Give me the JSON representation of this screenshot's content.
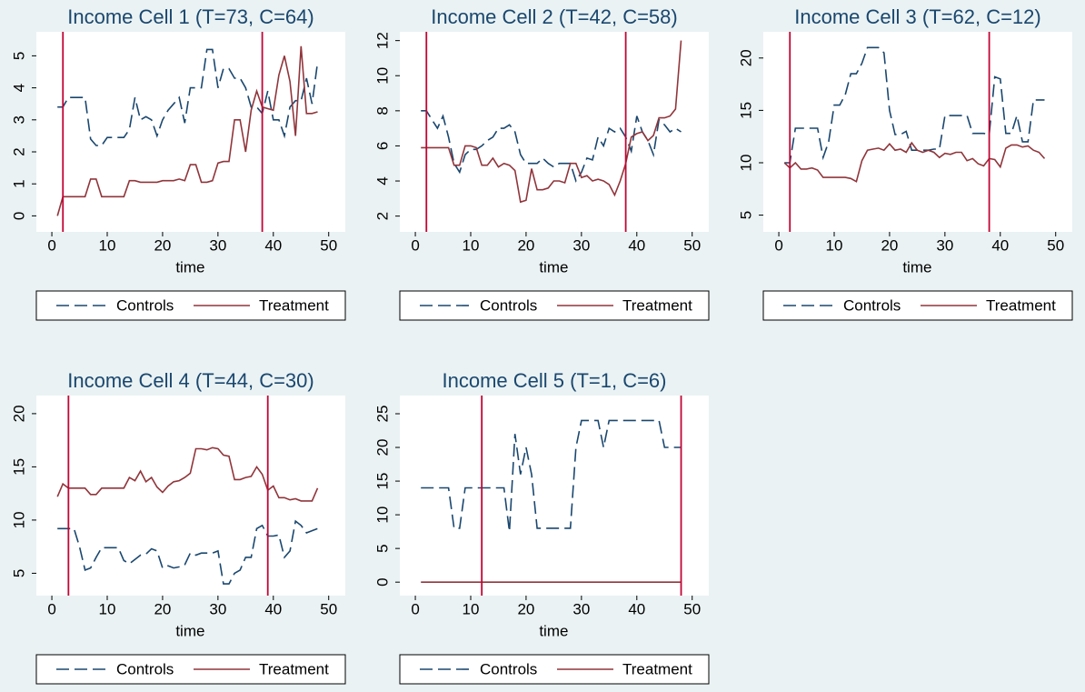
{
  "chart_data": [
    {
      "type": "line",
      "title": "Income Cell 1 (T=73, C=64)",
      "xlabel": "time",
      "x": [
        1,
        2,
        3,
        4,
        5,
        6,
        7,
        8,
        9,
        10,
        11,
        12,
        13,
        14,
        15,
        16,
        17,
        18,
        19,
        20,
        21,
        22,
        23,
        24,
        25,
        26,
        27,
        28,
        29,
        30,
        31,
        32,
        33,
        34,
        35,
        36,
        37,
        38,
        39,
        40,
        41,
        42,
        43,
        44,
        45,
        46,
        47,
        48
      ],
      "series": [
        {
          "name": "Controls",
          "color": "#1a476f",
          "style": "dashed",
          "values": [
            3.4,
            3.4,
            3.7,
            3.7,
            3.7,
            3.7,
            2.4,
            2.2,
            2.2,
            2.45,
            2.45,
            2.45,
            2.45,
            2.7,
            3.7,
            3.0,
            3.1,
            3.0,
            2.5,
            3.0,
            3.3,
            3.5,
            3.7,
            2.9,
            4.0,
            4.0,
            4.0,
            5.2,
            5.2,
            4.0,
            4.6,
            4.6,
            4.3,
            4.3,
            4.0,
            3.4,
            3.4,
            3.2,
            3.9,
            3.0,
            3.0,
            2.5,
            3.4,
            3.6,
            3.6,
            4.3,
            3.5,
            4.8
          ]
        },
        {
          "name": "Treatment",
          "color": "#90353b",
          "style": "solid",
          "values": [
            0,
            0.6,
            0.6,
            0.6,
            0.6,
            0.6,
            1.15,
            1.15,
            0.6,
            0.6,
            0.6,
            0.6,
            0.6,
            1.1,
            1.1,
            1.05,
            1.05,
            1.05,
            1.05,
            1.1,
            1.1,
            1.1,
            1.15,
            1.1,
            1.6,
            1.6,
            1.05,
            1.05,
            1.1,
            1.65,
            1.7,
            1.7,
            3.0,
            3.0,
            2.0,
            3.3,
            3.9,
            3.4,
            3.35,
            3.3,
            4.4,
            5.0,
            4.2,
            2.5,
            5.3,
            3.2,
            3.2,
            3.25
          ]
        }
      ],
      "vlines": [
        2,
        38
      ],
      "vline_color": "#c10534",
      "xlim": [
        -2.8,
        53
      ],
      "xticks": [
        0,
        10,
        20,
        30,
        40,
        50
      ],
      "ylim": [
        -0.5,
        5.75
      ],
      "yticks": [
        0,
        1,
        2,
        3,
        4,
        5
      ]
    },
    {
      "type": "line",
      "title": "Income Cell 2 (T=42, C=58)",
      "xlabel": "time",
      "x": [
        1,
        2,
        3,
        4,
        5,
        6,
        7,
        8,
        9,
        10,
        11,
        12,
        13,
        14,
        15,
        16,
        17,
        18,
        19,
        20,
        21,
        22,
        23,
        24,
        25,
        26,
        27,
        28,
        29,
        30,
        31,
        32,
        33,
        34,
        35,
        36,
        37,
        38,
        39,
        40,
        41,
        42,
        43,
        44,
        45,
        46,
        47,
        48
      ],
      "series": [
        {
          "name": "Controls",
          "color": "#1a476f",
          "style": "dashed",
          "values": [
            8,
            8,
            7.5,
            7,
            7.7,
            6.5,
            5,
            4.5,
            5.5,
            5.8,
            5.8,
            6,
            6.3,
            6.5,
            7,
            7,
            7.2,
            6.8,
            5.5,
            5,
            5,
            5,
            5.3,
            5,
            4.8,
            5,
            5,
            5,
            4,
            4.5,
            5.3,
            5.2,
            6.5,
            6,
            7,
            6.8,
            7,
            6.5,
            5.7,
            7.7,
            6.8,
            6.3,
            5.5,
            7.5,
            7.2,
            6.8,
            7,
            6.8
          ]
        },
        {
          "name": "Treatment",
          "color": "#90353b",
          "style": "solid",
          "values": [
            5.9,
            5.9,
            5.9,
            5.9,
            5.9,
            5.9,
            4.9,
            4.9,
            6,
            6,
            5.9,
            4.9,
            4.9,
            5.3,
            4.8,
            5,
            4.9,
            4.6,
            2.8,
            2.9,
            4.7,
            3.5,
            3.5,
            3.6,
            4,
            4,
            3.9,
            5,
            5,
            4.2,
            4.3,
            4,
            4.1,
            4,
            3.8,
            3.2,
            4,
            5,
            6.5,
            6.7,
            6.8,
            6.3,
            6.6,
            7.6,
            7.6,
            7.7,
            8.1,
            12
          ]
        }
      ],
      "vlines": [
        2,
        38
      ],
      "vline_color": "#c10534",
      "xlim": [
        -2.8,
        53
      ],
      "xticks": [
        0,
        10,
        20,
        30,
        40,
        50
      ],
      "ylim": [
        1.1,
        12.5
      ],
      "yticks": [
        2,
        4,
        6,
        8,
        10,
        12
      ]
    },
    {
      "type": "line",
      "title": "Income Cell 3 (T=62, C=12)",
      "xlabel": "time",
      "x": [
        1,
        2,
        3,
        4,
        5,
        6,
        7,
        8,
        9,
        10,
        11,
        12,
        13,
        14,
        15,
        16,
        17,
        18,
        19,
        20,
        21,
        22,
        23,
        24,
        25,
        26,
        27,
        28,
        29,
        30,
        31,
        32,
        33,
        34,
        35,
        36,
        37,
        38,
        39,
        40,
        41,
        42,
        43,
        44,
        45,
        46,
        47,
        48
      ],
      "series": [
        {
          "name": "Controls",
          "color": "#1a476f",
          "style": "dashed",
          "values": [
            10,
            10,
            13.3,
            13.3,
            13.3,
            13.3,
            13.3,
            10.5,
            12,
            15.5,
            15.5,
            16.5,
            18.5,
            18.5,
            19.5,
            21,
            21,
            21,
            20.5,
            15,
            12.7,
            12.7,
            13,
            11.2,
            11.2,
            11.2,
            11.2,
            11.3,
            11.3,
            14.5,
            14.5,
            14.5,
            14.5,
            14.5,
            12.8,
            12.8,
            12.8,
            12.7,
            18.2,
            18,
            12.8,
            12.8,
            14.5,
            12,
            12,
            16,
            16,
            16
          ]
        },
        {
          "name": "Treatment",
          "color": "#90353b",
          "style": "solid",
          "values": [
            10,
            9.5,
            10,
            9.4,
            9.4,
            9.5,
            9.3,
            8.6,
            8.6,
            8.6,
            8.6,
            8.6,
            8.5,
            8.2,
            10.2,
            11.2,
            11.3,
            11.4,
            11.2,
            11.8,
            11.2,
            11.3,
            11,
            11.9,
            11.2,
            11,
            11.2,
            11,
            10.5,
            10.9,
            10.8,
            11,
            11,
            10.2,
            10.4,
            9.9,
            9.7,
            10.4,
            10.3,
            9.6,
            11.4,
            11.7,
            11.7,
            11.5,
            11.6,
            11.2,
            11,
            10.4
          ]
        }
      ],
      "vlines": [
        2,
        38
      ],
      "vline_color": "#c10534",
      "xlim": [
        -2.8,
        53
      ],
      "xticks": [
        0,
        10,
        20,
        30,
        40,
        50
      ],
      "ylim": [
        3.4,
        22.5
      ],
      "yticks": [
        5,
        10,
        15,
        20
      ]
    },
    {
      "type": "line",
      "title": "Income Cell 4 (T=44, C=30)",
      "xlabel": "time",
      "x": [
        1,
        2,
        3,
        4,
        5,
        6,
        7,
        8,
        9,
        10,
        11,
        12,
        13,
        14,
        15,
        16,
        17,
        18,
        19,
        20,
        21,
        22,
        23,
        24,
        25,
        26,
        27,
        28,
        29,
        30,
        31,
        32,
        33,
        34,
        35,
        36,
        37,
        38,
        39,
        40,
        41,
        42,
        43,
        44,
        45,
        46,
        47,
        48
      ],
      "series": [
        {
          "name": "Controls",
          "color": "#1a476f",
          "style": "dashed",
          "values": [
            9.2,
            9.2,
            9.2,
            9.2,
            7.5,
            5.3,
            5.5,
            6.5,
            7.4,
            7.4,
            7.4,
            7.4,
            6.2,
            5.9,
            6.3,
            6.7,
            6.8,
            7.3,
            7.1,
            5.5,
            5.7,
            5.5,
            5.6,
            5.8,
            6.9,
            6.7,
            6.9,
            6.9,
            6.9,
            7.1,
            4,
            4,
            5,
            5.3,
            6.5,
            6.5,
            9.2,
            9.5,
            8.5,
            8.5,
            8.6,
            6.5,
            7.1,
            9.9,
            9.5,
            8.8,
            9,
            9.2
          ]
        },
        {
          "name": "Treatment",
          "color": "#90353b",
          "style": "solid",
          "values": [
            12.2,
            13.4,
            13,
            13,
            13,
            13,
            12.4,
            12.4,
            13,
            13,
            13,
            13,
            13,
            14,
            13.7,
            14.6,
            13.6,
            14,
            13.1,
            12.6,
            13.2,
            13.6,
            13.7,
            14,
            14.4,
            16.7,
            16.7,
            16.6,
            16.8,
            16.7,
            16.1,
            16,
            13.8,
            13.8,
            14,
            14.1,
            15,
            14.3,
            12.8,
            13.2,
            12.1,
            12.1,
            11.9,
            12,
            11.8,
            11.8,
            11.8,
            13
          ]
        }
      ],
      "vlines": [
        3,
        39
      ],
      "vline_color": "#c10534",
      "xlim": [
        -2.8,
        53
      ],
      "xticks": [
        0,
        10,
        20,
        30,
        40,
        50
      ],
      "ylim": [
        2.9,
        21.7
      ],
      "yticks": [
        5,
        10,
        15,
        20
      ]
    },
    {
      "type": "line",
      "title": "Income Cell 5 (T=1, C=6)",
      "xlabel": "time",
      "x": [
        1,
        2,
        3,
        4,
        5,
        6,
        7,
        8,
        9,
        10,
        11,
        12,
        13,
        14,
        15,
        16,
        17,
        18,
        19,
        20,
        21,
        22,
        23,
        24,
        25,
        26,
        27,
        28,
        29,
        30,
        31,
        32,
        33,
        34,
        35,
        36,
        37,
        38,
        39,
        40,
        41,
        42,
        43,
        44,
        45,
        46,
        47,
        48
      ],
      "series": [
        {
          "name": "Controls",
          "color": "#1a476f",
          "style": "dashed",
          "values": [
            14,
            14,
            14,
            14,
            14,
            14,
            8,
            8,
            14,
            14,
            14,
            14,
            14,
            14,
            14,
            14,
            7.5,
            22,
            16,
            20,
            16,
            8,
            8,
            8,
            8,
            8,
            8,
            8,
            20,
            24,
            24,
            24,
            24,
            20,
            24,
            24,
            24,
            24,
            24,
            24,
            24,
            24,
            24,
            24,
            20,
            20,
            20,
            20
          ]
        },
        {
          "name": "Treatment",
          "color": "#90353b",
          "style": "solid",
          "values": [
            0,
            0,
            0,
            0,
            0,
            0,
            0,
            0,
            0,
            0,
            0,
            0,
            0,
            0,
            0,
            0,
            0,
            0,
            0,
            0,
            0,
            0,
            0,
            0,
            0,
            0,
            0,
            0,
            0,
            0,
            0,
            0,
            0,
            0,
            0,
            0,
            0,
            0,
            0,
            0,
            0,
            0,
            0,
            0,
            0,
            0,
            0,
            0
          ]
        }
      ],
      "vlines": [
        12,
        48
      ],
      "vline_color": "#c10534",
      "xlim": [
        -2.8,
        53
      ],
      "xticks": [
        0,
        10,
        20,
        30,
        40,
        50
      ],
      "ylim": [
        -2,
        27.7
      ],
      "yticks": [
        0,
        5,
        10,
        15,
        20,
        25
      ]
    }
  ]
}
